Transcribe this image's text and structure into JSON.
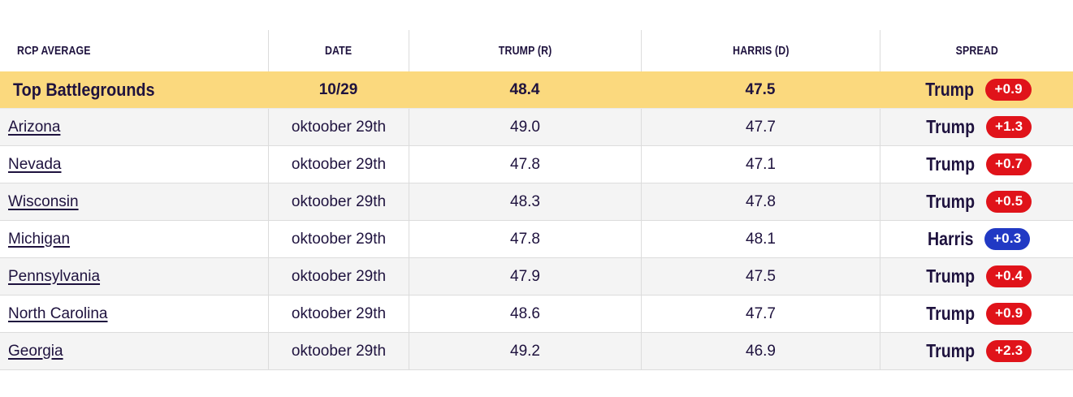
{
  "colors": {
    "highlight_yellow": "#fbd97e",
    "row_alt_gray": "#f4f4f4",
    "divider_gray": "#dcdcdc",
    "text_navy": "#1e123e",
    "trump_red": "#e0131a",
    "harris_blue": "#2139c4"
  },
  "table": {
    "headers": [
      "RCP AVERAGE",
      "DATE",
      "TRUMP (R)",
      "HARRIS (D)",
      "SPREAD"
    ],
    "summary": {
      "label": "Top Battlegrounds",
      "date": "10/29",
      "trump": "48.4",
      "harris": "47.5",
      "leader": "Trump",
      "margin": "+0.9"
    },
    "rows": [
      {
        "state": "Arizona",
        "date": "oktoober 29th",
        "trump": "49.0",
        "harris": "47.7",
        "leader": "Trump",
        "margin": "+1.3"
      },
      {
        "state": "Nevada",
        "date": "oktoober 29th",
        "trump": "47.8",
        "harris": "47.1",
        "leader": "Trump",
        "margin": "+0.7"
      },
      {
        "state": "Wisconsin",
        "date": "oktoober 29th",
        "trump": "48.3",
        "harris": "47.8",
        "leader": "Trump",
        "margin": "+0.5"
      },
      {
        "state": "Michigan",
        "date": "oktoober 29th",
        "trump": "47.8",
        "harris": "48.1",
        "leader": "Harris",
        "margin": "+0.3"
      },
      {
        "state": "Pennsylvania",
        "date": "oktoober 29th",
        "trump": "47.9",
        "harris": "47.5",
        "leader": "Trump",
        "margin": "+0.4"
      },
      {
        "state": "North Carolina",
        "date": "oktoober 29th",
        "trump": "48.6",
        "harris": "47.7",
        "leader": "Trump",
        "margin": "+0.9"
      },
      {
        "state": "Georgia",
        "date": "oktoober 29th",
        "trump": "49.2",
        "harris": "46.9",
        "leader": "Trump",
        "margin": "+2.3"
      }
    ]
  }
}
